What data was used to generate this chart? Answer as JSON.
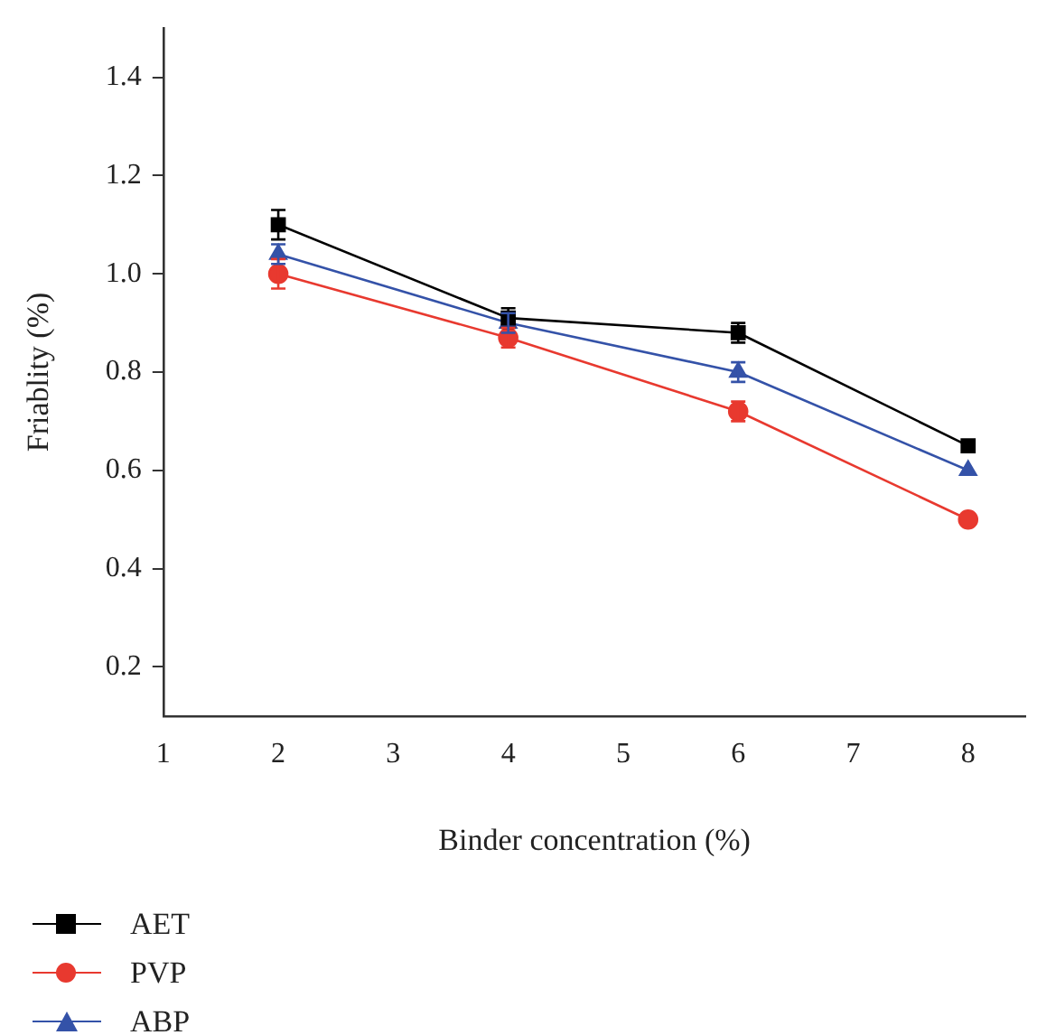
{
  "chart_data": {
    "type": "line",
    "xlabel": "Binder concentration (%)",
    "ylabel": "Friablity (%)",
    "x": [
      2,
      4,
      6,
      8
    ],
    "xlim": [
      1,
      8.5
    ],
    "xticks": [
      1,
      2,
      3,
      4,
      5,
      6,
      7,
      8
    ],
    "ylim": [
      0.1,
      1.5
    ],
    "yticks": [
      {
        "value": 0.2,
        "label": "0.2"
      },
      {
        "value": 0.4,
        "label": "0.4"
      },
      {
        "value": 0.6,
        "label": "0.6"
      },
      {
        "value": 0.8,
        "label": "0.8"
      },
      {
        "value": 1,
        "label": "1.0"
      },
      {
        "value": 1.2,
        "label": "1.2"
      },
      {
        "value": 1.4,
        "label": "1.4"
      }
    ],
    "grid": false,
    "legend": "bottom left",
    "series": [
      {
        "name": "AET",
        "color": "#000000",
        "marker": "square",
        "values": [
          1.1,
          0.91,
          0.88,
          0.65
        ],
        "errors": [
          0.03,
          0.02,
          0.02,
          null
        ]
      },
      {
        "name": "PVP",
        "color": "#e8392f",
        "marker": "circle",
        "values": [
          1.0,
          0.87,
          0.72,
          0.5
        ],
        "errors": [
          0.03,
          0.02,
          0.02,
          null
        ]
      },
      {
        "name": "ABP",
        "color": "#3452a8",
        "marker": "triangle",
        "values": [
          1.04,
          0.9,
          0.8,
          0.6
        ],
        "errors": [
          0.02,
          0.02,
          0.02,
          null
        ]
      }
    ]
  }
}
